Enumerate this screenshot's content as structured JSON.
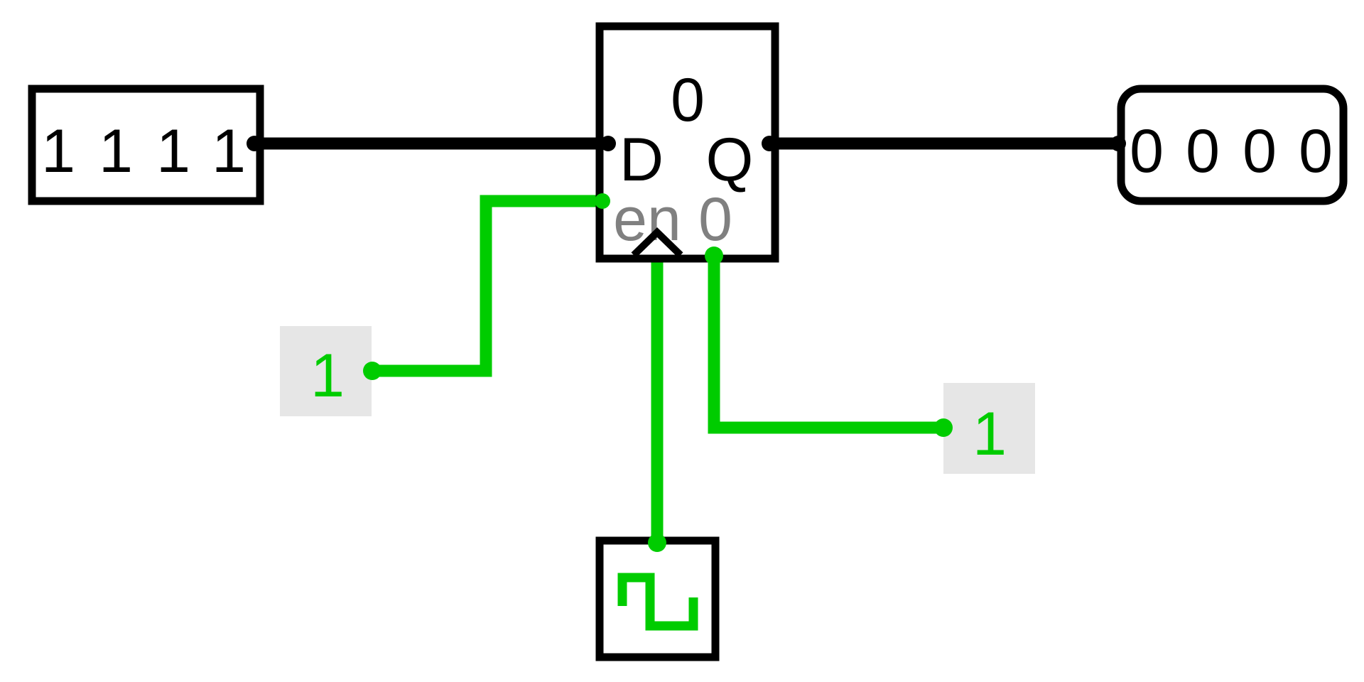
{
  "colors": {
    "wire_active": "#00cc00",
    "wire_bus": "#000000",
    "constant_bg": "#e6e6e6",
    "label_gray": "#808080",
    "outline": "#000000"
  },
  "input_pin": {
    "bits": [
      "1",
      "1",
      "1",
      "1"
    ]
  },
  "register": {
    "value": "0",
    "d_label": "D",
    "q_label": "Q",
    "en_label": "en",
    "clr_label": "0",
    "clock_icon": "clock-triangle-icon"
  },
  "output_pin": {
    "bits": [
      "0",
      "0",
      "0",
      "0"
    ]
  },
  "enable_constant": {
    "value": "1"
  },
  "clear_constant": {
    "value": "1"
  },
  "clock": {
    "icon": "square-wave-icon"
  }
}
